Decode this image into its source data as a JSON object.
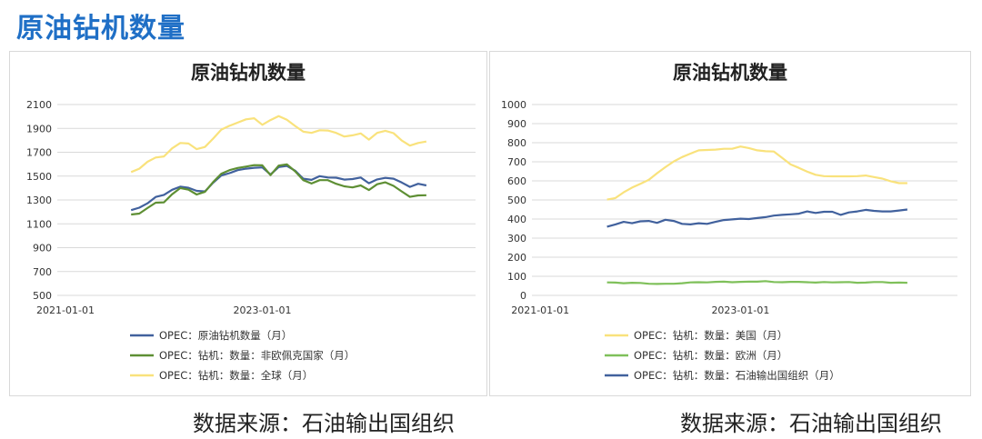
{
  "page_title": "原油钻机数量",
  "source_left": "数据来源：石油输出国组织",
  "source_right": "数据来源：石油输出国组织",
  "chart_data": [
    {
      "type": "line",
      "title": "原油钻机数量",
      "xlabel": "",
      "ylabel": "",
      "ylim": [
        500,
        2100
      ],
      "yticks": [
        500,
        700,
        900,
        1100,
        1300,
        1500,
        1700,
        1900,
        2100
      ],
      "xticks": [
        {
          "label": "2021-01-01",
          "x": -10
        },
        {
          "label": "2023-01-01",
          "x": 14
        }
      ],
      "x_start": -2,
      "grid": true,
      "legend_position": "bottom",
      "series": [
        {
          "name": "OPEC：原油钻机数量（月）",
          "color": "#41619d",
          "values": [
            1215,
            1235,
            1272,
            1325,
            1343,
            1385,
            1411,
            1402,
            1376,
            1372,
            1445,
            1505,
            1525,
            1550,
            1562,
            1570,
            1573,
            1513,
            1576,
            1586,
            1545,
            1478,
            1468,
            1500,
            1488,
            1487,
            1471,
            1475,
            1488,
            1440,
            1472,
            1485,
            1478,
            1446,
            1410,
            1436,
            1422
          ]
        },
        {
          "name": "OPEC：钻机：数量：非欧佩克国家（月）",
          "color": "#5e8f34",
          "values": [
            1178,
            1186,
            1232,
            1277,
            1280,
            1348,
            1400,
            1386,
            1346,
            1368,
            1450,
            1520,
            1550,
            1568,
            1580,
            1592,
            1590,
            1508,
            1588,
            1598,
            1540,
            1466,
            1438,
            1466,
            1466,
            1436,
            1414,
            1405,
            1422,
            1383,
            1432,
            1448,
            1418,
            1372,
            1326,
            1338,
            1340
          ]
        },
        {
          "name": "OPEC：钻机：数量：全球（月）",
          "color": "#f9e27c",
          "values": [
            1534,
            1562,
            1620,
            1656,
            1665,
            1733,
            1778,
            1773,
            1726,
            1744,
            1814,
            1890,
            1922,
            1948,
            1976,
            1985,
            1930,
            1970,
            2003,
            1972,
            1920,
            1872,
            1862,
            1884,
            1882,
            1862,
            1832,
            1842,
            1858,
            1806,
            1862,
            1880,
            1860,
            1798,
            1756,
            1778,
            1790
          ]
        }
      ]
    },
    {
      "type": "line",
      "title": "原油钻机数量",
      "xlabel": "",
      "ylabel": "",
      "ylim": [
        0,
        1000
      ],
      "yticks": [
        0,
        100,
        200,
        300,
        400,
        500,
        600,
        700,
        800,
        900,
        1000
      ],
      "xticks": [
        {
          "label": "2021-01-01",
          "x": -10
        },
        {
          "label": "2023-01-01",
          "x": 14
        }
      ],
      "x_start": -2,
      "grid": true,
      "legend_position": "bottom",
      "series": [
        {
          "name": "OPEC：钻机：数量：美国（月）",
          "color": "#f9e27c",
          "values": [
            502,
            510,
            540,
            565,
            585,
            605,
            640,
            672,
            702,
            725,
            743,
            760,
            762,
            764,
            768,
            768,
            780,
            772,
            760,
            755,
            754,
            720,
            686,
            668,
            648,
            632,
            625,
            624,
            624,
            624,
            625,
            628,
            620,
            612,
            598,
            588,
            588
          ]
        },
        {
          "name": "OPEC：钻机：数量：欧洲（月）",
          "color": "#7fc05a",
          "values": [
            68,
            67,
            64,
            66,
            65,
            61,
            60,
            61,
            61,
            64,
            68,
            69,
            68,
            71,
            72,
            69,
            71,
            72,
            72,
            75,
            70,
            69,
            71,
            71,
            69,
            67,
            70,
            68,
            69,
            70,
            66,
            67,
            70,
            70,
            66,
            67,
            66
          ]
        },
        {
          "name": "OPEC：钻机：数量：石油输出国组织（月）",
          "color": "#41619d",
          "values": [
            360,
            372,
            385,
            378,
            388,
            390,
            380,
            396,
            390,
            375,
            372,
            378,
            375,
            385,
            395,
            398,
            402,
            400,
            405,
            410,
            418,
            422,
            425,
            428,
            440,
            432,
            438,
            438,
            422,
            435,
            440,
            448,
            443,
            440,
            440,
            445,
            450
          ]
        }
      ]
    }
  ]
}
